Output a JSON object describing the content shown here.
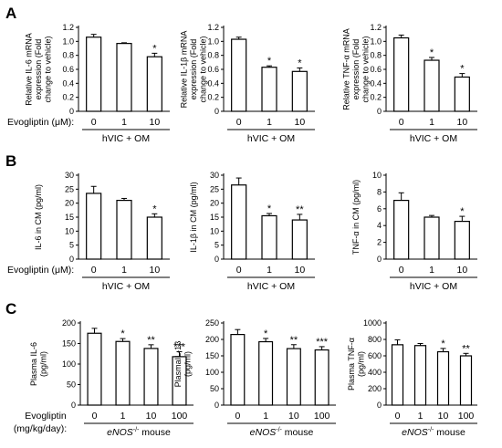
{
  "panels": [
    {
      "letter": "A"
    },
    {
      "letter": "B"
    },
    {
      "letter": "C"
    }
  ],
  "rows": [
    {
      "row_label": "Evogliptin (μM):",
      "row_label_2": "",
      "group_label": "hVIC + OM",
      "group_italic": "",
      "group_sup": ""
    },
    {
      "row_label": "Evogliptin (μM):",
      "row_label_2": "",
      "group_label": "hVIC + OM",
      "group_italic": "",
      "group_sup": ""
    },
    {
      "row_label": "Evogliptin",
      "row_label_2": "(mg/kg/day):",
      "group_label": "mouse",
      "group_italic": "eNOS",
      "group_sup": "-/-"
    }
  ],
  "chart_data": [
    {
      "type": "bar",
      "row": 0,
      "col": 0,
      "ylabel": [
        "Relative IL-6 mRNA",
        "expression (Fold",
        "change to vehicle)"
      ],
      "categories": [
        "0",
        "1",
        "10"
      ],
      "values": [
        1.06,
        0.97,
        0.78
      ],
      "errors": [
        0.04,
        0.01,
        0.05
      ],
      "significance": [
        "",
        "",
        "*"
      ],
      "ylim": [
        0,
        1.2
      ],
      "yticks": [
        "0",
        "0.2",
        "0.4",
        "0.6",
        "0.8",
        "1.0",
        "1.2"
      ]
    },
    {
      "type": "bar",
      "row": 0,
      "col": 1,
      "ylabel": [
        "Relative IL-1β mRNA",
        "expression (Fold",
        "change to vehicle)"
      ],
      "categories": [
        "0",
        "1",
        "10"
      ],
      "values": [
        1.03,
        0.63,
        0.57
      ],
      "errors": [
        0.03,
        0.02,
        0.05
      ],
      "significance": [
        "",
        "*",
        "*"
      ],
      "ylim": [
        0,
        1.2
      ],
      "yticks": [
        "0",
        "0.2",
        "0.4",
        "0.6",
        "0.8",
        "1.0",
        "1.2"
      ]
    },
    {
      "type": "bar",
      "row": 0,
      "col": 2,
      "ylabel": [
        "Relative TNF-α mRNA",
        "expression (Fold",
        "change to vehicle)"
      ],
      "categories": [
        "0",
        "1",
        "10"
      ],
      "values": [
        1.05,
        0.73,
        0.49
      ],
      "errors": [
        0.04,
        0.04,
        0.05
      ],
      "significance": [
        "",
        "*",
        "*"
      ],
      "ylim": [
        0,
        1.2
      ],
      "yticks": [
        "0",
        "0.2",
        "0.4",
        "0.6",
        "0.8",
        "1.0",
        "1.2"
      ]
    },
    {
      "type": "bar",
      "row": 1,
      "col": 0,
      "ylabel": [
        "IL-6 in CM (pg/ml)"
      ],
      "categories": [
        "0",
        "1",
        "10"
      ],
      "values": [
        23.5,
        21.0,
        15.0
      ],
      "errors": [
        2.5,
        0.7,
        1.2
      ],
      "significance": [
        "",
        "",
        "*"
      ],
      "ylim": [
        0,
        30
      ],
      "yticks": [
        "0",
        "5",
        "10",
        "15",
        "20",
        "25",
        "30"
      ]
    },
    {
      "type": "bar",
      "row": 1,
      "col": 1,
      "ylabel": [
        "IL-1β in CM (pg/ml)"
      ],
      "categories": [
        "0",
        "1",
        "10"
      ],
      "values": [
        26.5,
        15.5,
        14.0
      ],
      "errors": [
        2.5,
        0.8,
        2.0
      ],
      "significance": [
        "",
        "*",
        "**"
      ],
      "ylim": [
        0,
        30
      ],
      "yticks": [
        "0",
        "5",
        "10",
        "15",
        "20",
        "25",
        "30"
      ]
    },
    {
      "type": "bar",
      "row": 1,
      "col": 2,
      "ylabel": [
        "TNF-α in CM (pg/ml)"
      ],
      "categories": [
        "0",
        "1",
        "10"
      ],
      "values": [
        7.0,
        5.0,
        4.5
      ],
      "errors": [
        0.9,
        0.2,
        0.6
      ],
      "significance": [
        "",
        "",
        "*"
      ],
      "ylim": [
        0,
        10
      ],
      "yticks": [
        "0",
        "2",
        "4",
        "6",
        "8",
        "10"
      ]
    },
    {
      "type": "bar",
      "row": 2,
      "col": 0,
      "ylabel": [
        "Plasma IL-6",
        "(pg/ml)"
      ],
      "categories": [
        "0",
        "1",
        "10",
        "100"
      ],
      "values": [
        175,
        155,
        138,
        118
      ],
      "errors": [
        12,
        7,
        9,
        12
      ],
      "significance": [
        "",
        "*",
        "**",
        "***"
      ],
      "ylim": [
        0,
        200
      ],
      "yticks": [
        "0",
        "50",
        "100",
        "150",
        "200"
      ]
    },
    {
      "type": "bar",
      "row": 2,
      "col": 1,
      "ylabel": [
        "PlasmaIL-1β",
        "(pg/ml)"
      ],
      "categories": [
        "0",
        "1",
        "10",
        "100"
      ],
      "values": [
        215,
        193,
        172,
        168
      ],
      "errors": [
        15,
        10,
        12,
        10
      ],
      "significance": [
        "",
        "*",
        "**",
        "***"
      ],
      "ylim": [
        0,
        250
      ],
      "yticks": [
        "0",
        "50",
        "100",
        "150",
        "200",
        "250"
      ]
    },
    {
      "type": "bar",
      "row": 2,
      "col": 2,
      "ylabel": [
        "Plasma TNF-α",
        "(pg/ml)"
      ],
      "categories": [
        "0",
        "1",
        "10",
        "100"
      ],
      "values": [
        735,
        725,
        650,
        600
      ],
      "errors": [
        60,
        25,
        40,
        30
      ],
      "significance": [
        "",
        "",
        "*",
        "**"
      ],
      "ylim": [
        0,
        1000
      ],
      "yticks": [
        "0",
        "200",
        "400",
        "600",
        "800",
        "1000"
      ]
    }
  ]
}
